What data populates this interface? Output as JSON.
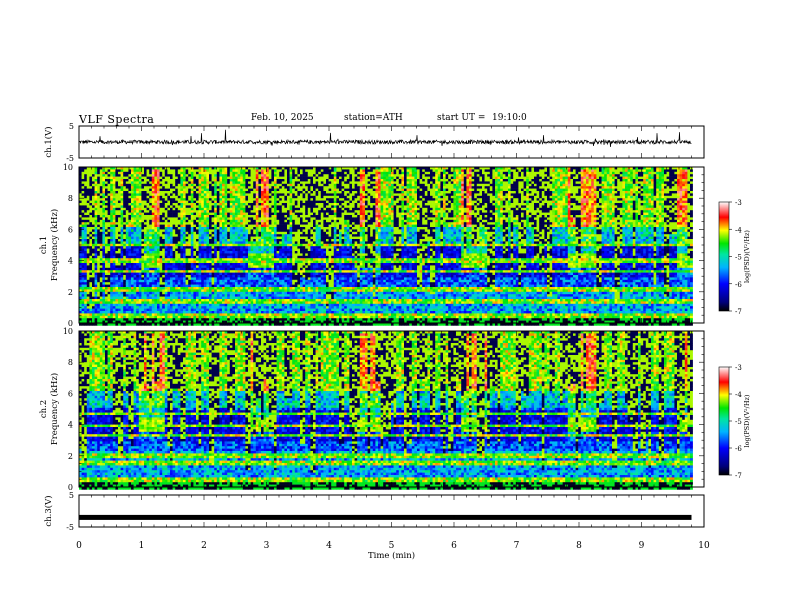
{
  "header": {
    "title": "VLF  Spectra",
    "date": "Feb. 10, 2025",
    "station": "station=ATH",
    "start_label": "start  UT  =",
    "start_time": "19:10:0"
  },
  "chart_data": [
    {
      "type": "line",
      "panel": "ch1-waveform",
      "ylabel": "ch.1(V)",
      "ylim": [
        -5,
        5
      ],
      "yticks": [
        "5",
        "-5"
      ],
      "series": [
        {
          "x_range_min": [
            0,
            9.8
          ],
          "y_mean": 0,
          "y_amplitude": 1.2
        }
      ],
      "color": "#000000"
    },
    {
      "type": "heatmap",
      "panel": "ch1-spectrogram",
      "ylabel": [
        "ch.1",
        "Frequency  (kHz)"
      ],
      "xlim": [
        0,
        10
      ],
      "ylim": [
        0,
        10
      ],
      "yticks": [
        "0",
        "2",
        "4",
        "6",
        "8",
        "10"
      ],
      "colorbar": {
        "label": "log(PSD)(V²/Hz)",
        "range": [
          -7,
          -3
        ],
        "ticks": [
          "-3",
          "-4",
          "-5",
          "-6",
          "-7"
        ]
      },
      "note_bands_kHz": [
        0.5,
        1.5,
        2.2,
        3.4,
        4.1,
        5.1
      ],
      "transmitter_on_min": [
        [
          1.0,
          1.35
        ],
        [
          2.7,
          3.1
        ],
        [
          4.4,
          4.8
        ],
        [
          6.1,
          6.5
        ],
        [
          7.8,
          8.25
        ],
        [
          9.55,
          9.8
        ]
      ]
    },
    {
      "type": "heatmap",
      "panel": "ch2-spectrogram",
      "ylabel": [
        "ch.2",
        "Frequency  (kHz)"
      ],
      "xlim": [
        0,
        10
      ],
      "ylim": [
        0,
        10
      ],
      "yticks": [
        "0",
        "2",
        "4",
        "6",
        "8",
        "10"
      ],
      "colorbar": {
        "label": "log(PSD)(V²/Hz)",
        "range": [
          -7,
          -3
        ],
        "ticks": [
          "-3",
          "-4",
          "-5",
          "-6",
          "-7"
        ]
      },
      "note_bands_kHz": [
        0.5,
        1.6,
        2.1,
        3.4,
        4.0,
        4.8
      ],
      "transmitter_on_min": [
        [
          0.95,
          1.35
        ],
        [
          2.7,
          3.1
        ],
        [
          4.4,
          4.8
        ],
        [
          6.1,
          6.5
        ],
        [
          7.8,
          8.25
        ],
        [
          9.55,
          9.8
        ]
      ]
    },
    {
      "type": "line",
      "panel": "ch3-waveform",
      "ylabel": "ch.3(V)",
      "ylim": [
        -5,
        5
      ],
      "yticks": [
        "5",
        "-5"
      ],
      "series": [
        {
          "x_range_min": [
            0,
            9.8
          ],
          "y_constant": -2
        }
      ],
      "color": "#000000"
    }
  ],
  "x_axis": {
    "label": "Time  (min)",
    "ticks": [
      "0",
      "1",
      "2",
      "3",
      "4",
      "5",
      "6",
      "7",
      "8",
      "9",
      "10"
    ],
    "xlim": [
      0,
      10
    ]
  }
}
